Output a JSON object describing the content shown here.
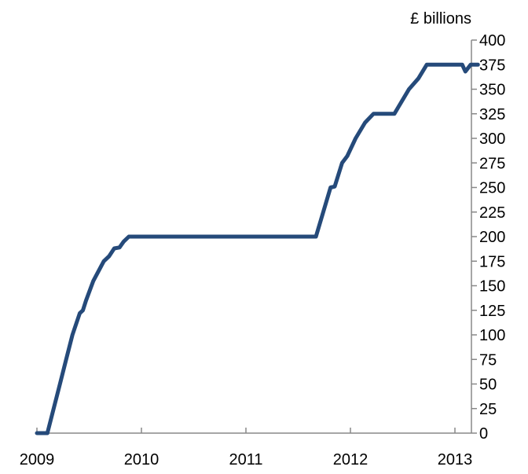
{
  "chart_data": {
    "type": "line",
    "title": "",
    "xlabel": "",
    "ylabel": "£ billions",
    "x_ticks": [
      "2009",
      "2010",
      "2011",
      "2012",
      "2013"
    ],
    "y_ticks": [
      "0",
      "25",
      "50",
      "75",
      "100",
      "125",
      "150",
      "175",
      "200",
      "225",
      "250",
      "275",
      "300",
      "325",
      "350",
      "375",
      "400"
    ],
    "xlim": [
      2009.0,
      2013.25
    ],
    "ylim": [
      0,
      400
    ],
    "grid": false,
    "legend": "none",
    "series": [
      {
        "color": "#254a7a",
        "points": [
          [
            2009.0,
            0
          ],
          [
            2009.1,
            0
          ],
          [
            2009.16,
            25
          ],
          [
            2009.22,
            50
          ],
          [
            2009.28,
            75
          ],
          [
            2009.34,
            100
          ],
          [
            2009.41,
            122
          ],
          [
            2009.44,
            125
          ],
          [
            2009.47,
            135
          ],
          [
            2009.54,
            155
          ],
          [
            2009.64,
            175
          ],
          [
            2009.69,
            180
          ],
          [
            2009.74,
            188
          ],
          [
            2009.79,
            189
          ],
          [
            2009.83,
            195
          ],
          [
            2009.88,
            200
          ],
          [
            2011.5,
            200
          ],
          [
            2011.67,
            200
          ],
          [
            2011.81,
            250
          ],
          [
            2011.85,
            251
          ],
          [
            2011.92,
            275
          ],
          [
            2011.97,
            282
          ],
          [
            2012.05,
            300
          ],
          [
            2012.14,
            316
          ],
          [
            2012.22,
            325
          ],
          [
            2012.42,
            325
          ],
          [
            2012.56,
            350
          ],
          [
            2012.65,
            361
          ],
          [
            2012.73,
            375
          ],
          [
            2013.07,
            375
          ],
          [
            2013.1,
            368
          ],
          [
            2013.15,
            375
          ],
          [
            2013.22,
            375
          ]
        ]
      }
    ]
  }
}
